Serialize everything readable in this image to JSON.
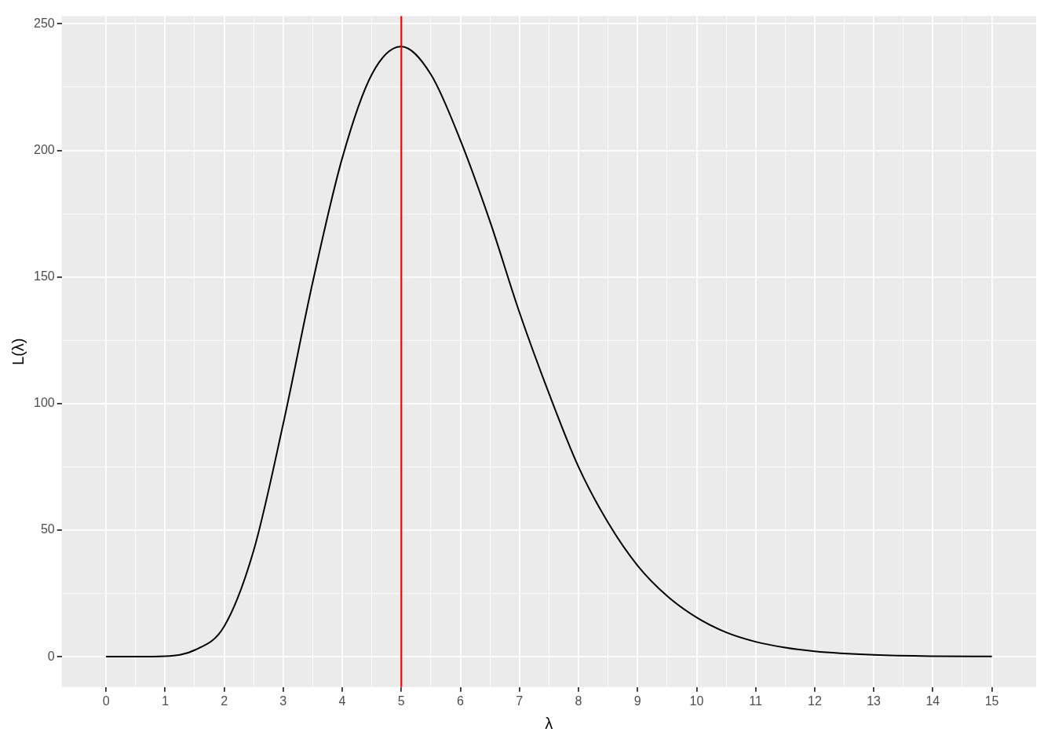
{
  "chart_data": {
    "type": "line",
    "xlabel": "λ",
    "ylabel": "L(λ)",
    "x": [
      0,
      0.5,
      1,
      1.5,
      2,
      2.5,
      3,
      3.5,
      4,
      4.5,
      5,
      5.5,
      6,
      6.5,
      7,
      7.5,
      8,
      8.5,
      9,
      9.5,
      10,
      10.5,
      11,
      11.5,
      12,
      13,
      14,
      15
    ],
    "series": [
      {
        "color": "#000000",
        "values": [
          0,
          0,
          0.2,
          2.6,
          12,
          42,
          92,
          148,
          197,
          230,
          241,
          230,
          204,
          172,
          136,
          104,
          75,
          53,
          36,
          24,
          15.5,
          9.6,
          5.9,
          3.6,
          2.1,
          0.7,
          0.2,
          0.1
        ]
      }
    ],
    "xlim": [
      -0.75,
      15.75
    ],
    "ylim": [
      -12,
      253
    ],
    "xticks": [
      0,
      {
        "value": 0.5,
        "label": null
      },
      1,
      {
        "value": 1.5,
        "label": null
      },
      2,
      {
        "value": 2.5,
        "label": null
      },
      3,
      {
        "value": 3.5,
        "label": null
      },
      4,
      {
        "value": 4.5,
        "label": null
      },
      5,
      {
        "value": 5.5,
        "label": null
      },
      6,
      {
        "value": 6.5,
        "label": null
      },
      7,
      {
        "value": 7.5,
        "label": null
      },
      8,
      {
        "value": 8.5,
        "label": null
      },
      9,
      {
        "value": 9.5,
        "label": null
      },
      10,
      {
        "value": 10.5,
        "label": null
      },
      11,
      {
        "value": 11.5,
        "label": null
      },
      12,
      {
        "value": 12.5,
        "label": null
      },
      13,
      {
        "value": 13.5,
        "label": null
      },
      14,
      {
        "value": 14.5,
        "label": null
      },
      15
    ],
    "yticks": [
      0,
      {
        "value": 25,
        "label": null
      },
      50,
      {
        "value": 75,
        "label": null
      },
      100,
      {
        "value": 125,
        "label": null
      },
      150,
      {
        "value": 175,
        "label": null
      },
      200,
      {
        "value": 225,
        "label": null
      },
      250
    ],
    "grid": true,
    "legend": false,
    "marker": "none",
    "line_style": "solid",
    "ref_lines": [
      {
        "axis": "x",
        "value": 5,
        "color": "#ff0000"
      }
    ]
  }
}
